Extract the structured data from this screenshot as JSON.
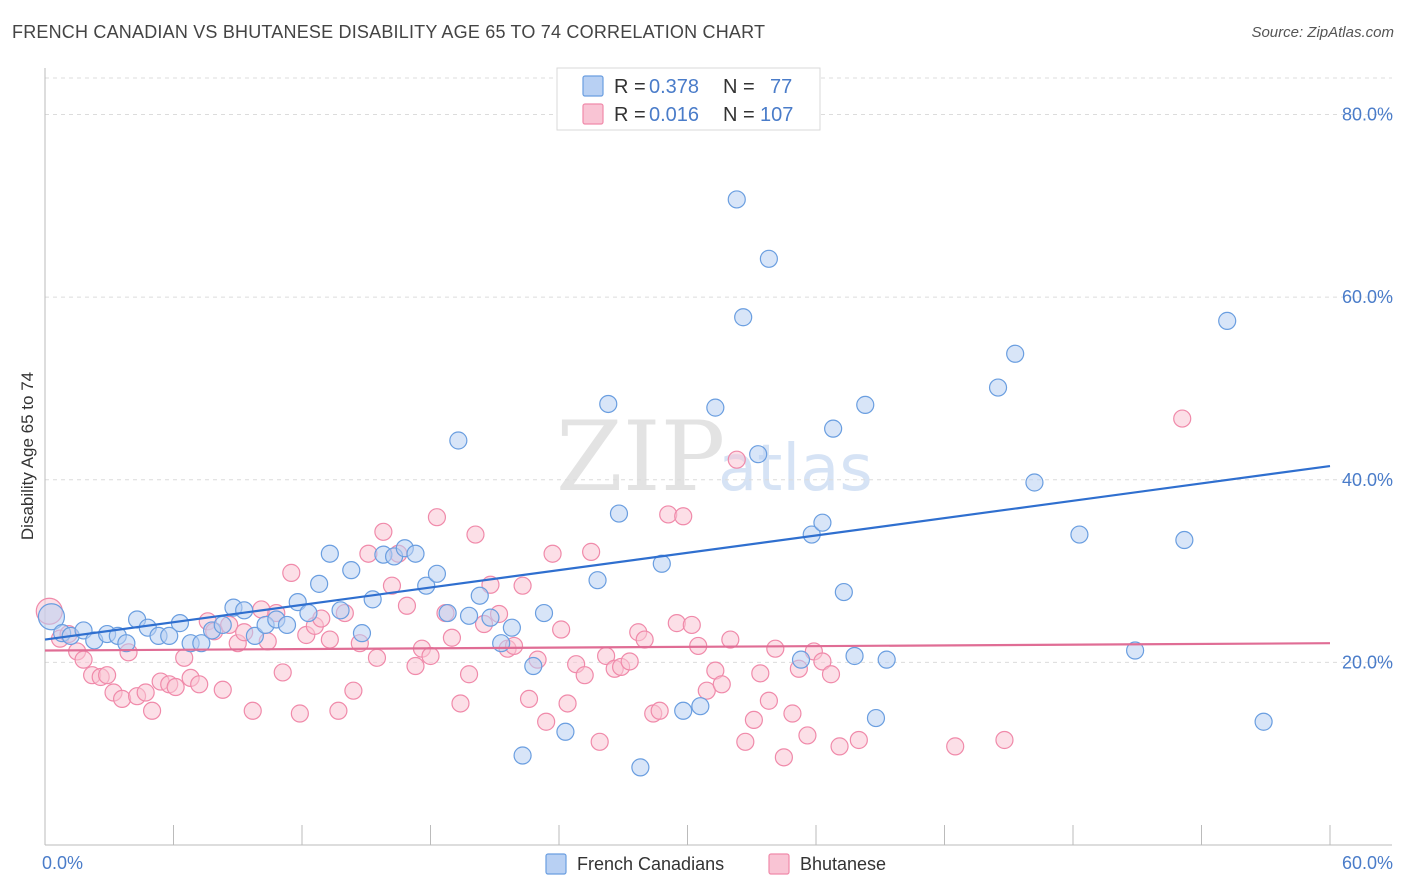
{
  "header": {
    "title": "FRENCH CANADIAN VS BHUTANESE DISABILITY AGE 65 TO 74 CORRELATION CHART",
    "source": "Source: ZipAtlas.com"
  },
  "watermark": {
    "zip": "ZIP",
    "atlas": "atlas"
  },
  "legend": {
    "r_label": "R =",
    "n_label": "N =",
    "rows": [
      {
        "r": "0.378",
        "n": "77",
        "color": "#6a9ee0"
      },
      {
        "r": "0.016",
        "n": "107",
        "color": "#f08aaa"
      }
    ]
  },
  "colors": {
    "blue_fill": "#b8d0f3",
    "blue_stroke": "#6a9ee0",
    "blue_line": "#2f6fcf",
    "pink_fill": "#f9c4d4",
    "pink_stroke": "#f08aaa",
    "pink_line": "#e06d95",
    "label": "#4a7cc9"
  },
  "chart_data": {
    "type": "scatter",
    "title": "FRENCH CANADIAN VS BHUTANESE DISABILITY AGE 65 TO 74 CORRELATION CHART",
    "xlabel": "",
    "ylabel": "Disability Age 65 to 74",
    "xlim": [
      0,
      60
    ],
    "ylim": [
      0,
      84
    ],
    "x_tick_labels": [
      "0.0%",
      "60.0%"
    ],
    "y_ticks": [
      20,
      40,
      60,
      80
    ],
    "y_tick_labels": [
      "20.0%",
      "40.0%",
      "60.0%",
      "80.0%"
    ],
    "grid": true,
    "legend_position": "top-center",
    "series": [
      {
        "name": "French Canadians",
        "r": 0.378,
        "n": 77,
        "trend": {
          "x": [
            0,
            60
          ],
          "y": [
            22.5,
            41.5
          ]
        },
        "points": [
          [
            0.3,
            25.0
          ],
          [
            0.8,
            23.2
          ],
          [
            1.2,
            22.9
          ],
          [
            1.8,
            23.5
          ],
          [
            2.3,
            22.4
          ],
          [
            2.9,
            23.1
          ],
          [
            3.4,
            22.9
          ],
          [
            3.8,
            22.1
          ],
          [
            4.3,
            24.7
          ],
          [
            4.8,
            23.8
          ],
          [
            5.3,
            22.9
          ],
          [
            5.8,
            22.9
          ],
          [
            6.3,
            24.3
          ],
          [
            6.8,
            22.1
          ],
          [
            7.3,
            22.1
          ],
          [
            7.8,
            23.5
          ],
          [
            8.3,
            24.1
          ],
          [
            8.8,
            26.0
          ],
          [
            9.3,
            25.7
          ],
          [
            9.8,
            22.9
          ],
          [
            10.3,
            24.1
          ],
          [
            10.8,
            24.7
          ],
          [
            11.3,
            24.1
          ],
          [
            11.8,
            26.6
          ],
          [
            12.3,
            25.4
          ],
          [
            12.8,
            28.6
          ],
          [
            13.3,
            31.9
          ],
          [
            13.8,
            25.7
          ],
          [
            14.3,
            30.1
          ],
          [
            14.8,
            23.2
          ],
          [
            15.3,
            26.9
          ],
          [
            15.8,
            31.8
          ],
          [
            16.3,
            31.6
          ],
          [
            16.8,
            32.5
          ],
          [
            17.3,
            31.9
          ],
          [
            17.8,
            28.4
          ],
          [
            18.3,
            29.7
          ],
          [
            18.8,
            25.4
          ],
          [
            19.3,
            44.3
          ],
          [
            19.8,
            25.1
          ],
          [
            20.3,
            27.3
          ],
          [
            20.8,
            24.9
          ],
          [
            21.3,
            22.1
          ],
          [
            21.8,
            23.8
          ],
          [
            22.3,
            9.8
          ],
          [
            22.8,
            19.6
          ],
          [
            23.3,
            25.4
          ],
          [
            24.3,
            12.4
          ],
          [
            25.8,
            29.0
          ],
          [
            26.3,
            48.3
          ],
          [
            26.8,
            36.3
          ],
          [
            27.8,
            8.5
          ],
          [
            28.8,
            30.8
          ],
          [
            29.8,
            14.7
          ],
          [
            30.6,
            15.2
          ],
          [
            31.3,
            47.9
          ],
          [
            32.3,
            70.7
          ],
          [
            32.6,
            57.8
          ],
          [
            33.3,
            42.8
          ],
          [
            33.8,
            64.2
          ],
          [
            35.3,
            20.3
          ],
          [
            35.8,
            34.0
          ],
          [
            36.3,
            35.3
          ],
          [
            36.8,
            45.6
          ],
          [
            37.3,
            27.7
          ],
          [
            37.8,
            20.7
          ],
          [
            38.3,
            48.2
          ],
          [
            38.8,
            13.9
          ],
          [
            39.3,
            20.3
          ],
          [
            44.5,
            50.1
          ],
          [
            45.3,
            53.8
          ],
          [
            46.2,
            39.7
          ],
          [
            48.3,
            34.0
          ],
          [
            50.9,
            21.3
          ],
          [
            53.2,
            33.4
          ],
          [
            55.2,
            57.4
          ],
          [
            56.9,
            13.5
          ]
        ]
      },
      {
        "name": "Bhutanese",
        "r": 0.016,
        "n": 107,
        "trend": {
          "x": [
            0,
            60
          ],
          "y": [
            21.3,
            22.1
          ]
        },
        "points": [
          [
            0.2,
            25.6
          ],
          [
            0.7,
            22.6
          ],
          [
            1.1,
            23.1
          ],
          [
            1.5,
            21.2
          ],
          [
            1.8,
            20.3
          ],
          [
            2.2,
            18.6
          ],
          [
            2.6,
            18.4
          ],
          [
            2.9,
            18.6
          ],
          [
            3.2,
            16.7
          ],
          [
            3.6,
            16.0
          ],
          [
            3.9,
            21.1
          ],
          [
            4.3,
            16.3
          ],
          [
            4.7,
            16.7
          ],
          [
            5.0,
            14.7
          ],
          [
            5.4,
            17.9
          ],
          [
            5.8,
            17.6
          ],
          [
            6.1,
            17.3
          ],
          [
            6.5,
            20.5
          ],
          [
            6.8,
            18.3
          ],
          [
            7.2,
            17.6
          ],
          [
            7.6,
            24.5
          ],
          [
            7.9,
            23.4
          ],
          [
            8.3,
            17.0
          ],
          [
            8.6,
            24.1
          ],
          [
            9.0,
            22.1
          ],
          [
            9.3,
            23.3
          ],
          [
            9.7,
            14.7
          ],
          [
            10.1,
            25.8
          ],
          [
            10.4,
            22.3
          ],
          [
            10.8,
            25.4
          ],
          [
            11.1,
            18.9
          ],
          [
            11.5,
            29.8
          ],
          [
            11.9,
            14.4
          ],
          [
            12.2,
            23.0
          ],
          [
            12.6,
            24.0
          ],
          [
            12.9,
            24.8
          ],
          [
            13.3,
            22.5
          ],
          [
            13.7,
            14.7
          ],
          [
            14.0,
            25.4
          ],
          [
            14.4,
            16.9
          ],
          [
            14.7,
            22.1
          ],
          [
            15.1,
            31.9
          ],
          [
            15.5,
            20.5
          ],
          [
            15.8,
            34.3
          ],
          [
            16.2,
            28.4
          ],
          [
            16.5,
            31.9
          ],
          [
            16.9,
            26.2
          ],
          [
            17.3,
            19.6
          ],
          [
            17.6,
            21.5
          ],
          [
            18.0,
            20.7
          ],
          [
            18.3,
            35.9
          ],
          [
            18.7,
            25.4
          ],
          [
            19.0,
            22.7
          ],
          [
            19.4,
            15.5
          ],
          [
            19.8,
            18.7
          ],
          [
            20.1,
            34.0
          ],
          [
            20.5,
            24.2
          ],
          [
            20.8,
            28.5
          ],
          [
            21.2,
            25.3
          ],
          [
            21.6,
            21.5
          ],
          [
            21.9,
            21.8
          ],
          [
            22.3,
            28.4
          ],
          [
            22.6,
            16.0
          ],
          [
            23.0,
            20.3
          ],
          [
            23.4,
            13.5
          ],
          [
            23.7,
            31.9
          ],
          [
            24.1,
            23.6
          ],
          [
            24.4,
            15.5
          ],
          [
            24.8,
            19.8
          ],
          [
            25.2,
            18.6
          ],
          [
            25.5,
            32.1
          ],
          [
            25.9,
            11.3
          ],
          [
            26.2,
            20.7
          ],
          [
            26.6,
            19.3
          ],
          [
            26.9,
            19.5
          ],
          [
            27.3,
            20.1
          ],
          [
            27.7,
            23.3
          ],
          [
            28.0,
            22.5
          ],
          [
            28.4,
            14.4
          ],
          [
            28.7,
            14.7
          ],
          [
            29.1,
            36.2
          ],
          [
            29.5,
            24.3
          ],
          [
            29.8,
            36.0
          ],
          [
            30.2,
            24.1
          ],
          [
            30.5,
            21.8
          ],
          [
            30.9,
            16.9
          ],
          [
            31.3,
            19.1
          ],
          [
            31.6,
            17.6
          ],
          [
            32.0,
            22.5
          ],
          [
            32.3,
            42.2
          ],
          [
            32.7,
            11.3
          ],
          [
            33.1,
            13.7
          ],
          [
            33.4,
            18.8
          ],
          [
            33.8,
            15.8
          ],
          [
            34.1,
            21.5
          ],
          [
            34.5,
            9.6
          ],
          [
            34.9,
            14.4
          ],
          [
            35.2,
            19.3
          ],
          [
            35.6,
            12.0
          ],
          [
            35.9,
            21.2
          ],
          [
            36.3,
            20.1
          ],
          [
            36.7,
            18.7
          ],
          [
            37.1,
            10.8
          ],
          [
            38.0,
            11.5
          ],
          [
            42.5,
            10.8
          ],
          [
            44.8,
            11.5
          ],
          [
            53.1,
            46.7
          ]
        ]
      }
    ]
  }
}
